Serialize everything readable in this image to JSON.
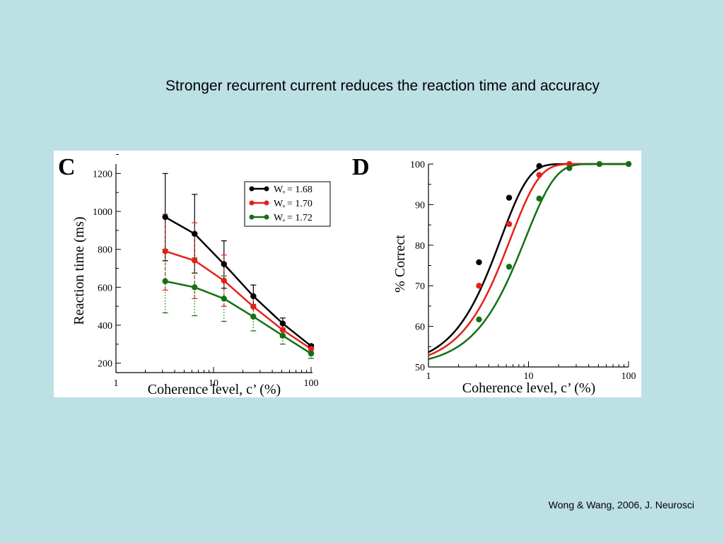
{
  "slide": {
    "title": "Stronger recurrent current reduces the reaction time and accuracy",
    "citation": "Wong & Wang, 2006, J. Neurosci",
    "background": "#bce0e4"
  },
  "chart_data": [
    {
      "panel": "C",
      "type": "line",
      "xlabel": "Coherence level, c’ (%)",
      "ylabel": "Reaction time (ms)",
      "xscale": "log",
      "xlim": [
        1,
        100
      ],
      "ylim": [
        150,
        1250
      ],
      "xticks": [
        1,
        10,
        100
      ],
      "yticks": [
        200,
        400,
        600,
        800,
        1000,
        1200
      ],
      "legend_position": "top-right",
      "x": [
        3.2,
        6.4,
        12.8,
        25.6,
        51.2,
        100
      ],
      "series": [
        {
          "name_main": "W",
          "name_sub": "+",
          "name_rest": "  = 1.68",
          "color": "#000000",
          "error_style": "solid",
          "values": [
            970,
            882,
            722,
            553,
            409,
            290
          ],
          "err_low": [
            740,
            675,
            595,
            495,
            380,
            285
          ],
          "err_high": [
            1200,
            1090,
            845,
            612,
            438,
            298
          ]
        },
        {
          "name_main": "W",
          "name_sub": "+",
          "name_rest": "  = 1.70",
          "color": "#e3211c",
          "error_style": "dashed",
          "values": [
            790,
            741,
            635,
            498,
            375,
            275
          ],
          "err_low": [
            585,
            540,
            500,
            445,
            335,
            260
          ],
          "err_high": [
            985,
            940,
            770,
            550,
            405,
            290
          ]
        },
        {
          "name_main": "W",
          "name_sub": "+",
          "name_rest": "  = 1.72",
          "color": "#137013",
          "error_style": "dotted",
          "values": [
            632,
            600,
            540,
            445,
            345,
            250
          ],
          "err_low": [
            465,
            450,
            420,
            370,
            300,
            225
          ],
          "err_high": [
            800,
            755,
            660,
            510,
            385,
            275
          ]
        }
      ]
    },
    {
      "panel": "D",
      "type": "line",
      "xlabel": "Coherence level,  c’ (%)",
      "ylabel": "% Correct",
      "xscale": "log",
      "xlim": [
        1,
        100
      ],
      "ylim": [
        50,
        100
      ],
      "xticks": [
        1,
        10,
        100
      ],
      "yticks": [
        50,
        60,
        70,
        80,
        90,
        100
      ],
      "curves": [
        {
          "color": "#000000",
          "alpha": 5.3,
          "beta": 1.55,
          "points_x": [
            3.2,
            6.4,
            12.8
          ],
          "points_y": [
            75.8,
            91.7,
            99.5
          ]
        },
        {
          "color": "#e3211c",
          "alpha": 6.6,
          "beta": 1.5,
          "points_x": [
            3.2,
            6.4,
            12.8,
            25.6
          ],
          "points_y": [
            70,
            85.2,
            97.3,
            100
          ]
        },
        {
          "color": "#137013",
          "alpha": 9.3,
          "beta": 1.45,
          "points_x": [
            3.2,
            6.4,
            12.8,
            25.6,
            51.2,
            100
          ],
          "points_y": [
            61.7,
            74.7,
            91.5,
            99,
            100,
            100
          ]
        }
      ]
    }
  ]
}
